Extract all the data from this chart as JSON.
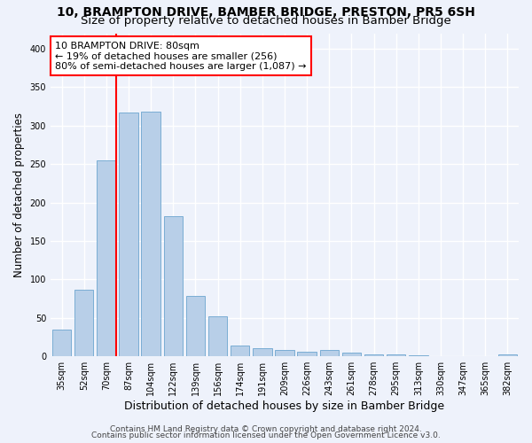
{
  "title": "10, BRAMPTON DRIVE, BAMBER BRIDGE, PRESTON, PR5 6SH",
  "subtitle": "Size of property relative to detached houses in Bamber Bridge",
  "xlabel": "Distribution of detached houses by size in Bamber Bridge",
  "ylabel": "Number of detached properties",
  "categories": [
    "35sqm",
    "52sqm",
    "70sqm",
    "87sqm",
    "104sqm",
    "122sqm",
    "139sqm",
    "156sqm",
    "174sqm",
    "191sqm",
    "209sqm",
    "226sqm",
    "243sqm",
    "261sqm",
    "278sqm",
    "295sqm",
    "313sqm",
    "330sqm",
    "347sqm",
    "365sqm",
    "382sqm"
  ],
  "values": [
    35,
    87,
    255,
    317,
    318,
    182,
    78,
    52,
    14,
    11,
    8,
    6,
    8,
    5,
    3,
    3,
    1,
    0,
    0,
    0,
    3
  ],
  "bar_color": "#b8cfe8",
  "bar_edge_color": "#7aadd4",
  "vline_bar_index": 2,
  "annotation_line1": "10 BRAMPTON DRIVE: 80sqm",
  "annotation_line2": "← 19% of detached houses are smaller (256)",
  "annotation_line3": "80% of semi-detached houses are larger (1,087) →",
  "annotation_box_color": "white",
  "annotation_box_edge": "red",
  "vline_color": "red",
  "ylim": [
    0,
    420
  ],
  "yticks": [
    0,
    50,
    100,
    150,
    200,
    250,
    300,
    350,
    400
  ],
  "background_color": "#eef2fb",
  "grid_color": "white",
  "footer1": "Contains HM Land Registry data © Crown copyright and database right 2024.",
  "footer2": "Contains public sector information licensed under the Open Government Licence v3.0.",
  "title_fontsize": 10,
  "subtitle_fontsize": 9.5,
  "xlabel_fontsize": 9,
  "ylabel_fontsize": 8.5,
  "tick_fontsize": 7,
  "annot_fontsize": 8,
  "footer_fontsize": 6.5
}
